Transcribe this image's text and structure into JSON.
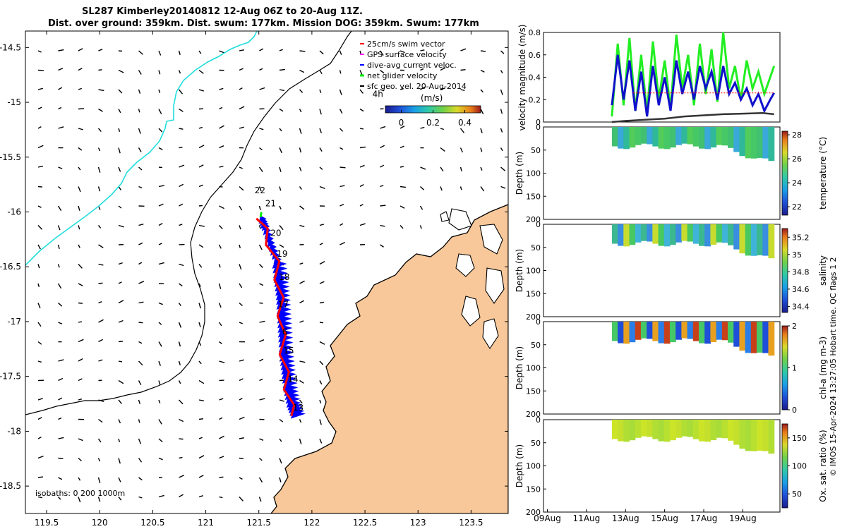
{
  "header": {
    "line1": "SL287 Kimberley20140812 12-Aug 06Z to 20-Aug 11Z.",
    "line2": "Dist. over ground: 359km. Dist. swum: 177km. Mission DOG: 359km. Swum: 177km"
  },
  "footer": {
    "credit": "© IMOS 15-Apr-2024 13:27:05 Hobart time. QC flags 1  2"
  },
  "colors": {
    "land": "#f8c89a",
    "track_blue": "#0000ff",
    "track_red": "#ff0000",
    "fill_line": "#00ee00",
    "isobath_cyan": "#22dddd",
    "velocity_blue": "#1010cc",
    "velocity_green": "#22ee22",
    "velocity_dark": "#333333"
  },
  "chart_data": [
    {
      "type": "line",
      "name": "glider-track-map",
      "x_ticks": [
        "119.5",
        "120",
        "120.5",
        "121",
        "121.5",
        "122",
        "122.5",
        "123",
        "123.5"
      ],
      "y_ticks": [
        "-14.5",
        "-15",
        "-15.5",
        "-16",
        "-16.5",
        "-17",
        "-17.5",
        "-18",
        "-18.5"
      ],
      "xlim": [
        119.3,
        123.85
      ],
      "ylim": [
        -18.75,
        -14.35
      ],
      "day_labels": [
        {
          "label": "22",
          "lon": 121.46,
          "lat": -15.83
        },
        {
          "label": "21",
          "lon": 121.56,
          "lat": -15.95
        },
        {
          "label": "20",
          "lon": 121.61,
          "lat": -16.22
        },
        {
          "label": "19",
          "lon": 121.67,
          "lat": -16.41
        },
        {
          "label": "18",
          "lon": 121.69,
          "lat": -16.62
        },
        {
          "label": "17",
          "lon": 121.68,
          "lat": -16.87
        },
        {
          "label": "6",
          "lon": 121.72,
          "lat": -17.12
        },
        {
          "label": "15",
          "lon": 121.73,
          "lat": -17.29
        },
        {
          "label": "14",
          "lon": 121.77,
          "lat": -17.55
        },
        {
          "label": "13",
          "lon": 121.82,
          "lat": -17.81
        },
        {
          "label": "4h",
          "lon": 122.57,
          "lat": -14.95
        }
      ],
      "track": [
        {
          "lon": 121.84,
          "lat": -17.86
        },
        {
          "lon": 121.8,
          "lat": -17.76
        },
        {
          "lon": 121.77,
          "lat": -17.62
        },
        {
          "lon": 121.75,
          "lat": -17.46
        },
        {
          "lon": 121.73,
          "lat": -17.3
        },
        {
          "lon": 121.72,
          "lat": -17.12
        },
        {
          "lon": 121.71,
          "lat": -16.95
        },
        {
          "lon": 121.7,
          "lat": -16.78
        },
        {
          "lon": 121.68,
          "lat": -16.62
        },
        {
          "lon": 121.66,
          "lat": -16.45
        },
        {
          "lon": 121.6,
          "lat": -16.3
        },
        {
          "lon": 121.55,
          "lat": -16.15
        },
        {
          "lon": 121.51,
          "lat": -16.06
        }
      ],
      "legend": {
        "items": [
          {
            "label": "25cm/s swim vector",
            "color": "#ff0000"
          },
          {
            "label": "GPS surface velocity",
            "color": "#ff00ff"
          },
          {
            "label": "dive-avg current veloc.",
            "color": "#0000ff"
          },
          {
            "label": "net glider velocity",
            "color": "#00ee00"
          },
          {
            "label": "sfc geo. vel. 20-Aug-2014",
            "color": "#000000"
          }
        ],
        "colorbar_title": "(m/s)",
        "colorbar_ticks": [
          "0",
          "0.2",
          "0.4"
        ],
        "colorbar_range": [
          -0.1,
          0.5
        ],
        "position": "top-right"
      },
      "isobaths_label": "isobaths: 0    200   1000m"
    },
    {
      "type": "line",
      "name": "velocity-magnitude",
      "ylabel": "velocity magnitude (m/s)",
      "ylim": [
        0,
        0.8
      ],
      "y_ticks": [
        "0",
        "0.2",
        "0.4",
        "0.6",
        "0.8"
      ],
      "xlim": [
        8.8,
        20.9
      ],
      "series": [
        {
          "name": "net glider velocity",
          "color": "#22ee22",
          "x": [
            12.3,
            12.6,
            12.9,
            13.2,
            13.5,
            13.8,
            14.1,
            14.4,
            14.7,
            15.0,
            15.3,
            15.6,
            15.9,
            16.2,
            16.5,
            16.8,
            17.1,
            17.4,
            17.7,
            18.0,
            18.3,
            18.6,
            18.9,
            19.2,
            19.5,
            19.8,
            20.1,
            20.4,
            20.6
          ],
          "values": [
            0.05,
            0.7,
            0.15,
            0.75,
            0.1,
            0.6,
            0.08,
            0.72,
            0.2,
            0.55,
            0.12,
            0.78,
            0.3,
            0.6,
            0.15,
            0.7,
            0.25,
            0.65,
            0.18,
            0.8,
            0.3,
            0.5,
            0.2,
            0.55,
            0.3,
            0.45,
            0.25,
            0.4,
            0.5
          ]
        },
        {
          "name": "dive-avg current veloc.",
          "color": "#1010cc",
          "x": [
            12.3,
            12.6,
            12.9,
            13.2,
            13.5,
            13.8,
            14.1,
            14.4,
            14.7,
            15.0,
            15.3,
            15.6,
            15.9,
            16.2,
            16.5,
            16.8,
            17.1,
            17.4,
            17.7,
            18.0,
            18.3,
            18.6,
            18.9,
            19.2,
            19.5,
            19.8,
            20.1,
            20.4,
            20.6
          ],
          "values": [
            0.15,
            0.6,
            0.2,
            0.55,
            0.1,
            0.45,
            0.05,
            0.5,
            0.15,
            0.4,
            0.1,
            0.55,
            0.25,
            0.45,
            0.2,
            0.5,
            0.3,
            0.45,
            0.2,
            0.5,
            0.25,
            0.35,
            0.2,
            0.3,
            0.15,
            0.25,
            0.1,
            0.2,
            0.26
          ]
        },
        {
          "name": "sfc geo. vel.",
          "color": "#333333",
          "x": [
            12.3,
            13.0,
            14.0,
            15.0,
            16.0,
            17.0,
            18.0,
            19.0,
            20.0,
            20.6
          ],
          "values": [
            0.0,
            0.01,
            0.02,
            0.03,
            0.05,
            0.06,
            0.07,
            0.075,
            0.08,
            0.07
          ]
        }
      ]
    },
    {
      "type": "heatmap",
      "name": "temperature-section",
      "ylabel": "Depth (m)",
      "colorbar_label": "temperature (°C)",
      "y_ticks": [
        "0",
        "50",
        "100",
        "150",
        "200"
      ],
      "colorbar_ticks": [
        "22",
        "24",
        "26",
        "28"
      ],
      "colorbar_range": [
        21.3,
        28.3
      ],
      "ylim": [
        200,
        0
      ]
    },
    {
      "type": "heatmap",
      "name": "salinity-section",
      "ylabel": "Depth (m)",
      "colorbar_label": "salinity",
      "y_ticks": [
        "0",
        "50",
        "100",
        "150",
        "200"
      ],
      "colorbar_ticks": [
        "34.4",
        "34.6",
        "34.8",
        "35",
        "35.2"
      ],
      "colorbar_range": [
        34.33,
        35.3
      ],
      "ylim": [
        200,
        0
      ]
    },
    {
      "type": "heatmap",
      "name": "chlorophyll-section",
      "ylabel": "Depth (m)",
      "colorbar_label": "chl-a (mg m-3)",
      "y_ticks": [
        "0",
        "50",
        "100",
        "150",
        "200"
      ],
      "colorbar_ticks": [
        "0",
        "1",
        "2"
      ],
      "colorbar_range": [
        0,
        2
      ],
      "ylim": [
        200,
        0
      ]
    },
    {
      "type": "heatmap",
      "name": "oxygen-section",
      "ylabel": "Depth (m)",
      "colorbar_label": "Ox. sat. ratio (%)",
      "y_ticks": [
        "0",
        "50",
        "100",
        "150",
        "200"
      ],
      "colorbar_ticks": [
        "50",
        "100",
        "150"
      ],
      "colorbar_range": [
        25,
        175
      ],
      "ylim": [
        200,
        0
      ]
    },
    {
      "type": "axis",
      "name": "time-axis",
      "x_ticks": [
        "09Aug",
        "11Aug",
        "13Aug",
        "15Aug",
        "17Aug",
        "19Aug"
      ],
      "x_tick_days": [
        9,
        11,
        13,
        15,
        17,
        19
      ]
    }
  ]
}
